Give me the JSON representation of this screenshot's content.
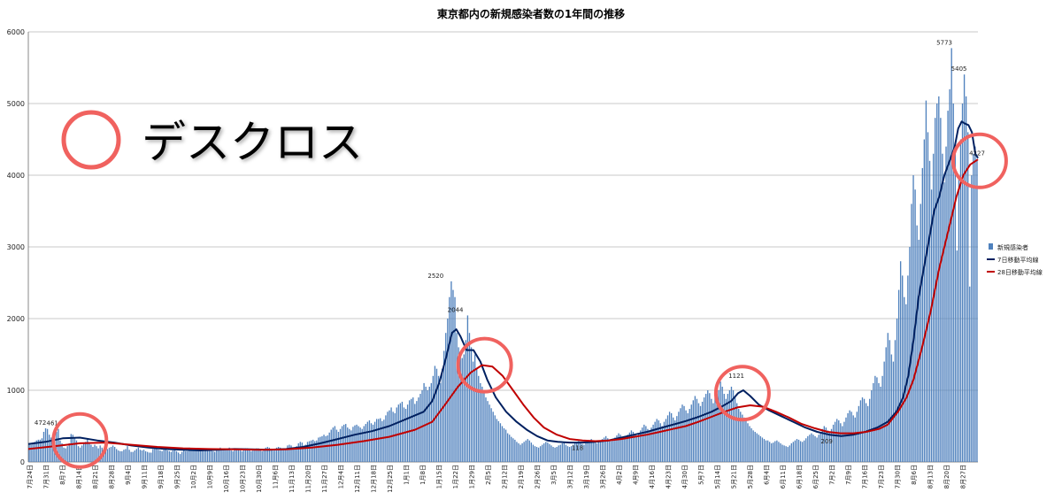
{
  "chart_data": {
    "type": "bar",
    "title": "東京都内の新規感染者数の1年間の推移",
    "ylim": [
      0,
      6000
    ],
    "y_ticks": [
      0,
      1000,
      2000,
      3000,
      4000,
      5000,
      6000
    ],
    "grid": "horizontal",
    "legend_position": "right",
    "x_labels": [
      "7月24日",
      "7月31日",
      "8月7日",
      "8月14日",
      "8月21日",
      "8月28日",
      "9月4日",
      "9月11日",
      "9月18日",
      "9月25日",
      "10月2日",
      "10月9日",
      "10月16日",
      "10月23日",
      "10月30日",
      "11月6日",
      "11月13日",
      "11月20日",
      "11月27日",
      "12月4日",
      "12月11日",
      "12月18日",
      "12月25日",
      "1月1日",
      "1月8日",
      "1月15日",
      "1月22日",
      "1月29日",
      "2月5日",
      "2月12日",
      "2月19日",
      "2月26日",
      "3月5日",
      "3月12日",
      "3月19日",
      "3月26日",
      "4月2日",
      "4月9日",
      "4月16日",
      "4月23日",
      "4月30日",
      "5月7日",
      "5月14日",
      "5月21日",
      "5月28日",
      "6月4日",
      "6月11日",
      "6月18日",
      "6月25日",
      "7月2日",
      "7月9日",
      "7月16日",
      "7月23日",
      "7月30日",
      "8月6日",
      "8月13日",
      "8月20日",
      "8月27日"
    ],
    "series": [
      {
        "name": "新規感染者",
        "kind": "bar",
        "color": "#4f81bd",
        "values": [
          260,
          240,
          270,
          280,
          300,
          310,
          310,
          330,
          420,
          470,
          460,
          380,
          340,
          360,
          400,
          420,
          460,
          300,
          260,
          200,
          190,
          220,
          260,
          390,
          380,
          340,
          300,
          220,
          200,
          230,
          260,
          280,
          330,
          260,
          240,
          210,
          240,
          220,
          190,
          230,
          200,
          170,
          170,
          180,
          200,
          210,
          230,
          210,
          180,
          160,
          150,
          150,
          170,
          180,
          220,
          170,
          140,
          140,
          160,
          180,
          200,
          170,
          160,
          170,
          150,
          140,
          130,
          130,
          180,
          200,
          190,
          170,
          160,
          150,
          170,
          180,
          160,
          150,
          140,
          160,
          170,
          150,
          130,
          110,
          140,
          190,
          150,
          150,
          200,
          190,
          170,
          160,
          180,
          180,
          160,
          150,
          150,
          170,
          190,
          190,
          180,
          150,
          140,
          160,
          180,
          200,
          160,
          170,
          180,
          180,
          200,
          160,
          150,
          170,
          190,
          180,
          160,
          150,
          170,
          190,
          190,
          180,
          150,
          160,
          170,
          190,
          190,
          180,
          150,
          170,
          200,
          210,
          200,
          170,
          160,
          180,
          200,
          210,
          200,
          180,
          170,
          190,
          230,
          240,
          230,
          200,
          190,
          220,
          260,
          280,
          270,
          230,
          240,
          280,
          290,
          300,
          310,
          290,
          300,
          340,
          350,
          360,
          380,
          360,
          370,
          410,
          450,
          480,
          500,
          450,
          420,
          460,
          500,
          520,
          530,
          480,
          460,
          440,
          490,
          510,
          520,
          500,
          480,
          460,
          500,
          530,
          560,
          580,
          540,
          520,
          560,
          600,
          600,
          610,
          570,
          590,
          650,
          700,
          720,
          760,
          700,
          680,
          760,
          800,
          820,
          840,
          760,
          740,
          800,
          860,
          880,
          900,
          810,
          850,
          900,
          950,
          1000,
          1100,
          1050,
          1000,
          1050,
          1100,
          1200,
          1340,
          1300,
          1200,
          1100,
          1300,
          1550,
          1800,
          2000,
          2300,
          2520,
          2400,
          2300,
          1800,
          1600,
          1500,
          1450,
          1500,
          1700,
          2044,
          1800,
          1600,
          1400,
          1500,
          1300,
          1200,
          1100,
          1050,
          1000,
          900,
          850,
          800,
          750,
          700,
          650,
          600,
          570,
          540,
          500,
          470,
          450,
          400,
          380,
          350,
          330,
          310,
          280,
          260,
          240,
          260,
          280,
          300,
          320,
          300,
          270,
          240,
          220,
          210,
          200,
          220,
          240,
          260,
          280,
          270,
          250,
          230,
          210,
          200,
          210,
          230,
          240,
          260,
          270,
          240,
          220,
          210,
          220,
          240,
          260,
          280,
          290,
          270,
          250,
          240,
          260,
          280,
          300,
          320,
          300,
          280,
          260,
          280,
          300,
          320,
          340,
          360,
          330,
          300,
          290,
          310,
          340,
          370,
          400,
          380,
          350,
          320,
          350,
          380,
          410,
          440,
          420,
          380,
          360,
          400,
          440,
          480,
          520,
          500,
          460,
          420,
          480,
          520,
          560,
          600,
          580,
          540,
          500,
          560,
          600,
          650,
          700,
          680,
          620,
          580,
          640,
          700,
          750,
          800,
          780,
          720,
          680,
          740,
          800,
          860,
          920,
          880,
          820,
          780,
          840,
          900,
          950,
          1000,
          960,
          880,
          820,
          900,
          950,
          1000,
          1121,
          1050,
          950,
          880,
          950,
          1000,
          1050,
          1000,
          900,
          820,
          740,
          700,
          660,
          620,
          580,
          540,
          500,
          470,
          440,
          420,
          400,
          380,
          360,
          340,
          320,
          300,
          300,
          280,
          260,
          270,
          290,
          300,
          280,
          260,
          240,
          230,
          220,
          209,
          230,
          260,
          280,
          300,
          320,
          310,
          290,
          280,
          300,
          330,
          360,
          380,
          400,
          380,
          360,
          340,
          380,
          420,
          460,
          500,
          480,
          440,
          420,
          460,
          520,
          560,
          600,
          580,
          540,
          500,
          560,
          620,
          680,
          720,
          700,
          650,
          620,
          700,
          780,
          860,
          900,
          880,
          820,
          780,
          880,
          1000,
          1100,
          1200,
          1180,
          1100,
          1050,
          1200,
          1400,
          1600,
          1800,
          1700,
          1500,
          1400,
          1700,
          2000,
          2400,
          2800,
          2600,
          2300,
          2200,
          2600,
          3000,
          3600,
          4000,
          3800,
          3300,
          3100,
          3600,
          4100,
          4500,
          5042,
          4600,
          4200,
          3800,
          4300,
          4800,
          5000,
          5100,
          4800,
          4300,
          3900,
          4400,
          4900,
          5200,
          5773,
          5000,
          4400,
          2950,
          4000,
          4500,
          5000,
          5405,
          5100,
          4600,
          2447,
          4000,
          4300,
          4400,
          4227
        ]
      },
      {
        "name": "7日移動平均線",
        "kind": "line",
        "color": "#002060",
        "points": [
          [
            0,
            250
          ],
          [
            20,
            280
          ],
          [
            40,
            330
          ],
          [
            60,
            340
          ],
          [
            80,
            300
          ],
          [
            100,
            270
          ],
          [
            120,
            230
          ],
          [
            140,
            200
          ],
          [
            160,
            180
          ],
          [
            180,
            170
          ],
          [
            200,
            160
          ],
          [
            220,
            170
          ],
          [
            240,
            180
          ],
          [
            260,
            175
          ],
          [
            280,
            170
          ],
          [
            300,
            180
          ],
          [
            320,
            210
          ],
          [
            340,
            260
          ],
          [
            360,
            320
          ],
          [
            380,
            380
          ],
          [
            400,
            430
          ],
          [
            420,
            500
          ],
          [
            440,
            600
          ],
          [
            460,
            700
          ],
          [
            470,
            850
          ],
          [
            478,
            1100
          ],
          [
            486,
            1450
          ],
          [
            493,
            1800
          ],
          [
            498,
            1850
          ],
          [
            503,
            1750
          ],
          [
            510,
            1560
          ],
          [
            518,
            1560
          ],
          [
            526,
            1400
          ],
          [
            534,
            1150
          ],
          [
            544,
            900
          ],
          [
            556,
            700
          ],
          [
            568,
            560
          ],
          [
            580,
            450
          ],
          [
            592,
            360
          ],
          [
            604,
            300
          ],
          [
            616,
            280
          ],
          [
            630,
            270
          ],
          [
            645,
            270
          ],
          [
            660,
            280
          ],
          [
            675,
            300
          ],
          [
            690,
            340
          ],
          [
            705,
            380
          ],
          [
            720,
            420
          ],
          [
            735,
            470
          ],
          [
            750,
            520
          ],
          [
            765,
            570
          ],
          [
            780,
            630
          ],
          [
            795,
            700
          ],
          [
            808,
            780
          ],
          [
            818,
            850
          ],
          [
            826,
            960
          ],
          [
            832,
            1000
          ],
          [
            840,
            920
          ],
          [
            850,
            800
          ],
          [
            862,
            720
          ],
          [
            876,
            640
          ],
          [
            890,
            560
          ],
          [
            904,
            480
          ],
          [
            918,
            420
          ],
          [
            932,
            380
          ],
          [
            946,
            360
          ],
          [
            960,
            380
          ],
          [
            974,
            420
          ],
          [
            988,
            480
          ],
          [
            1000,
            560
          ],
          [
            1010,
            700
          ],
          [
            1018,
            900
          ],
          [
            1024,
            1200
          ],
          [
            1030,
            1700
          ],
          [
            1036,
            2300
          ],
          [
            1042,
            2700
          ],
          [
            1048,
            3100
          ],
          [
            1054,
            3500
          ],
          [
            1060,
            3700
          ],
          [
            1066,
            4000
          ],
          [
            1072,
            4200
          ],
          [
            1078,
            4400
          ],
          [
            1082,
            4650
          ],
          [
            1086,
            4750
          ],
          [
            1090,
            4720
          ],
          [
            1094,
            4700
          ],
          [
            1098,
            4600
          ],
          [
            1102,
            4300
          ],
          [
            1105,
            4240
          ]
        ]
      },
      {
        "name": "28日移動平均線",
        "kind": "line",
        "color": "#c00000",
        "points": [
          [
            0,
            180
          ],
          [
            30,
            220
          ],
          [
            60,
            260
          ],
          [
            90,
            270
          ],
          [
            120,
            240
          ],
          [
            150,
            210
          ],
          [
            180,
            190
          ],
          [
            210,
            180
          ],
          [
            240,
            175
          ],
          [
            270,
            170
          ],
          [
            300,
            175
          ],
          [
            330,
            200
          ],
          [
            360,
            240
          ],
          [
            390,
            290
          ],
          [
            420,
            350
          ],
          [
            450,
            450
          ],
          [
            470,
            560
          ],
          [
            485,
            800
          ],
          [
            500,
            1050
          ],
          [
            515,
            1250
          ],
          [
            528,
            1350
          ],
          [
            540,
            1330
          ],
          [
            552,
            1200
          ],
          [
            564,
            1000
          ],
          [
            576,
            800
          ],
          [
            588,
            620
          ],
          [
            600,
            480
          ],
          [
            615,
            380
          ],
          [
            630,
            320
          ],
          [
            645,
            300
          ],
          [
            660,
            290
          ],
          [
            675,
            300
          ],
          [
            690,
            320
          ],
          [
            705,
            350
          ],
          [
            720,
            380
          ],
          [
            735,
            420
          ],
          [
            750,
            460
          ],
          [
            765,
            500
          ],
          [
            780,
            560
          ],
          [
            795,
            630
          ],
          [
            810,
            700
          ],
          [
            825,
            760
          ],
          [
            840,
            790
          ],
          [
            855,
            770
          ],
          [
            870,
            700
          ],
          [
            885,
            620
          ],
          [
            900,
            530
          ],
          [
            915,
            470
          ],
          [
            930,
            420
          ],
          [
            945,
            400
          ],
          [
            960,
            400
          ],
          [
            975,
            420
          ],
          [
            990,
            460
          ],
          [
            1000,
            520
          ],
          [
            1012,
            700
          ],
          [
            1022,
            900
          ],
          [
            1030,
            1150
          ],
          [
            1040,
            1600
          ],
          [
            1050,
            2100
          ],
          [
            1060,
            2700
          ],
          [
            1070,
            3200
          ],
          [
            1080,
            3700
          ],
          [
            1088,
            4000
          ],
          [
            1096,
            4150
          ],
          [
            1105,
            4220
          ]
        ]
      }
    ],
    "data_labels": [
      {
        "text": "472",
        "x": 14,
        "y": 472,
        "series": "新規感染者"
      },
      {
        "text": "461",
        "x": 28,
        "y": 461,
        "series": "新規感染者"
      },
      {
        "text": "2520",
        "x": 474,
        "y": 2520,
        "series": "新規感染者"
      },
      {
        "text": "2044",
        "x": 497,
        "y": 2044,
        "series": "新規感染者"
      },
      {
        "text": "118",
        "x": 639,
        "y": 118,
        "series": "新規感染者"
      },
      {
        "text": "1121",
        "x": 824,
        "y": 1121,
        "series": "新規感染者"
      },
      {
        "text": "209",
        "x": 929,
        "y": 209,
        "series": "新規感染者"
      },
      {
        "text": "5773",
        "x": 1066,
        "y": 5773,
        "series": "新規感染者"
      },
      {
        "text": "5405",
        "x": 1083,
        "y": 5405,
        "series": "新規感染者"
      },
      {
        "text": "4227",
        "x": 1104,
        "y": 4227,
        "series": "新規感染者"
      }
    ],
    "annotations": {
      "death_cross_label": "デスクロス",
      "circle_color": "#f0625f",
      "circle_markers": [
        {
          "x": 60,
          "y": 300
        },
        {
          "x": 531,
          "y": 1350
        },
        {
          "x": 831,
          "y": 960
        },
        {
          "x": 1107,
          "y": 4200
        }
      ]
    }
  }
}
